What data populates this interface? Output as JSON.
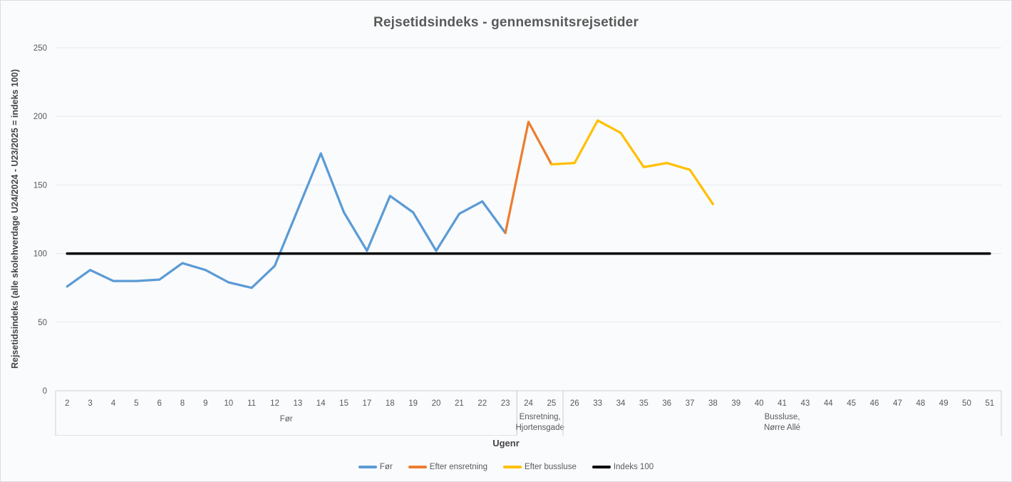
{
  "chart_data": {
    "type": "line",
    "title": "Rejsetidsindeks - gennemsnitsrejsetider",
    "xlabel": "Ugenr",
    "ylabel": "Rejsetidsindeks (alle skolehverdage U24/2024 - U23/2025 = indeks 100)",
    "categories": [
      2,
      3,
      4,
      5,
      6,
      8,
      9,
      10,
      11,
      12,
      13,
      14,
      15,
      17,
      18,
      19,
      20,
      21,
      22,
      23,
      24,
      25,
      26,
      33,
      34,
      35,
      36,
      37,
      38,
      39,
      40,
      41,
      43,
      44,
      45,
      46,
      47,
      48,
      49,
      50,
      51
    ],
    "ylim": [
      0,
      250
    ],
    "yticks": [
      0,
      50,
      100,
      150,
      200,
      250
    ],
    "grid": true,
    "legend_position": "bottom",
    "series": [
      {
        "name": "Før",
        "color": "#5B9BD5",
        "weeks": [
          2,
          3,
          4,
          5,
          6,
          8,
          9,
          10,
          11,
          12,
          13,
          14,
          15,
          17,
          18,
          19,
          20,
          21,
          22,
          23
        ],
        "values": [
          76,
          88,
          80,
          80,
          81,
          93,
          88,
          79,
          75,
          91,
          132,
          173,
          130,
          102,
          142,
          130,
          102,
          129,
          138,
          115
        ]
      },
      {
        "name": "Efter ensretning",
        "color": "#ED7D31",
        "weeks": [
          23,
          24,
          25
        ],
        "values": [
          115,
          196,
          165
        ]
      },
      {
        "name": "Efter bussluse",
        "color": "#FFC000",
        "weeks": [
          25,
          26,
          33,
          34,
          35,
          36,
          37,
          38
        ],
        "values": [
          165,
          166,
          197,
          188,
          163,
          166,
          161,
          136
        ]
      },
      {
        "name": "Indeks 100",
        "color": "#000000",
        "weeks": [
          2,
          51
        ],
        "values": [
          100,
          100
        ]
      }
    ],
    "x_groups": [
      {
        "label_lines": [
          "Før"
        ],
        "from_week": 2,
        "to_week": 23
      },
      {
        "label_lines": [
          "Ensretning,",
          "Hjortensgade"
        ],
        "from_week": 24,
        "to_week": 25
      },
      {
        "label_lines": [
          "Bussluse,",
          "Nørre Allé"
        ],
        "from_week": 26,
        "to_week": 51
      }
    ]
  }
}
